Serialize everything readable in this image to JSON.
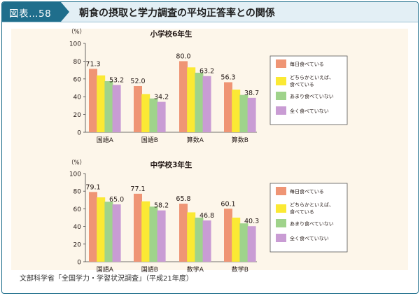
{
  "header": {
    "badge": "図表…58",
    "title": "朝食の摂取と学力調査の平均正答率との関係"
  },
  "legend_items": [
    {
      "label": "毎日食べている",
      "color": "#ef9575"
    },
    {
      "label": "どちらかといえば、食べている",
      "color": "#fbe934"
    },
    {
      "label": "あまり食べていない",
      "color": "#9fd38b"
    },
    {
      "label": "全く食べていない",
      "color": "#c99cd4"
    }
  ],
  "chart_data": [
    {
      "type": "bar",
      "title": "小学校6年生",
      "unit": "（%）",
      "ylim": [
        0,
        100
      ],
      "yticks": [
        0,
        20,
        40,
        60,
        80,
        100
      ],
      "categories": [
        "国語A",
        "国語B",
        "算数A",
        "算数B"
      ],
      "series": [
        {
          "name": "毎日食べている",
          "values": [
            71.3,
            52.0,
            80.0,
            56.3
          ]
        },
        {
          "name": "どちらかといえば、食べている",
          "values": [
            64.0,
            43.0,
            73.0,
            48.0
          ]
        },
        {
          "name": "あまり食べていない",
          "values": [
            57.5,
            38.0,
            67.0,
            42.0
          ]
        },
        {
          "name": "全く食べていない",
          "values": [
            53.2,
            34.2,
            63.2,
            38.7
          ]
        }
      ],
      "data_labels": [
        {
          "category": "国語A",
          "series": 0,
          "text": "71.3"
        },
        {
          "category": "国語A",
          "series": 3,
          "text": "53.2"
        },
        {
          "category": "国語B",
          "series": 0,
          "text": "52.0"
        },
        {
          "category": "国語B",
          "series": 3,
          "text": "34.2"
        },
        {
          "category": "算数A",
          "series": 0,
          "text": "80.0"
        },
        {
          "category": "算数A",
          "series": 3,
          "text": "63.2"
        },
        {
          "category": "算数B",
          "series": 0,
          "text": "56.3"
        },
        {
          "category": "算数B",
          "series": 3,
          "text": "38.7"
        }
      ]
    },
    {
      "type": "bar",
      "title": "中学校3年生",
      "unit": "（%）",
      "ylim": [
        0,
        100
      ],
      "yticks": [
        0,
        20,
        40,
        60,
        80,
        100
      ],
      "categories": [
        "国語A",
        "国語B",
        "数学A",
        "数学B"
      ],
      "series": [
        {
          "name": "毎日食べている",
          "values": [
            79.1,
            77.1,
            65.8,
            60.1
          ]
        },
        {
          "name": "どちらかといえば、食べている",
          "values": [
            73.0,
            68.5,
            56.0,
            50.0
          ]
        },
        {
          "name": "あまり食べていない",
          "values": [
            68.0,
            62.5,
            50.0,
            43.5
          ]
        },
        {
          "name": "全く食べていない",
          "values": [
            65.0,
            58.2,
            46.8,
            40.3
          ]
        }
      ],
      "data_labels": [
        {
          "category": "国語A",
          "series": 0,
          "text": "79.1"
        },
        {
          "category": "国語A",
          "series": 3,
          "text": "65.0"
        },
        {
          "category": "国語B",
          "series": 0,
          "text": "77.1"
        },
        {
          "category": "国語B",
          "series": 3,
          "text": "58.2"
        },
        {
          "category": "数学A",
          "series": 0,
          "text": "65.8"
        },
        {
          "category": "数学A",
          "series": 3,
          "text": "46.8"
        },
        {
          "category": "数学B",
          "series": 0,
          "text": "60.1"
        },
        {
          "category": "数学B",
          "series": 3,
          "text": "40.3"
        }
      ]
    }
  ],
  "source": "文部科学省「全国学力・学習状況調査」（平成21年度）"
}
